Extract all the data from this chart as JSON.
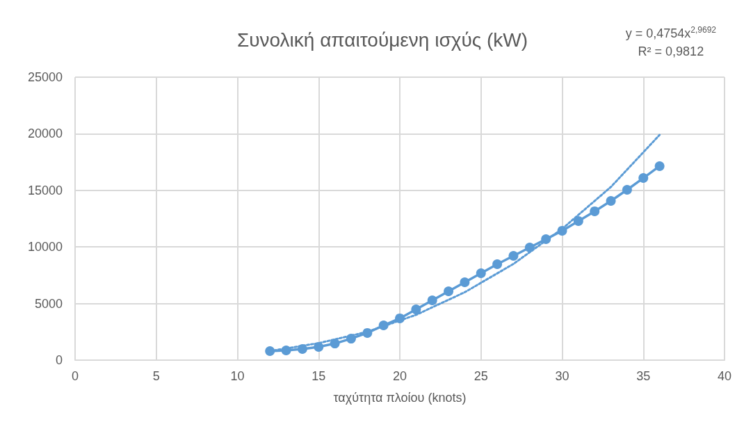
{
  "chart_data": {
    "type": "line",
    "title": "Συνολική απαιτούμενη ισχύς (kW)",
    "xlabel": "ταχύτητα πλοίου (knots)",
    "annotations": [
      "y = 0,4754x$^{2,9692}$",
      "R² = 0,9812"
    ],
    "xlim": [
      0,
      40
    ],
    "xticks": [
      0,
      5,
      10,
      15,
      20,
      25,
      30,
      35,
      40
    ],
    "ylim": [
      0,
      25000
    ],
    "yticks": [
      0,
      5000,
      10000,
      15000,
      20000,
      25000
    ],
    "grid": true,
    "series": [
      {
        "color": "#5b9bd5",
        "marker": "circle",
        "line_style": "solid",
        "x": [
          12,
          13,
          14,
          15,
          16,
          17,
          18,
          19,
          20,
          21,
          22,
          23,
          24,
          25,
          26,
          27,
          28,
          29,
          30,
          31,
          32,
          33,
          34,
          35,
          36
        ],
        "values": [
          800,
          860,
          980,
          1170,
          1470,
          1900,
          2400,
          3070,
          3690,
          4480,
          5280,
          6080,
          6880,
          7680,
          8480,
          9210,
          9950,
          10690,
          11430,
          12290,
          13150,
          14070,
          15050,
          16090,
          17140
        ]
      },
      {
        "type": "line",
        "color": "#5b9bd5",
        "marker": "none",
        "line_style": "dotted",
        "x": [
          12,
          15,
          18,
          21,
          24,
          27,
          30,
          33,
          36
        ],
        "values": [
          800,
          1500,
          2500,
          4000,
          6000,
          8500,
          11600,
          15300,
          19900
        ]
      }
    ]
  }
}
